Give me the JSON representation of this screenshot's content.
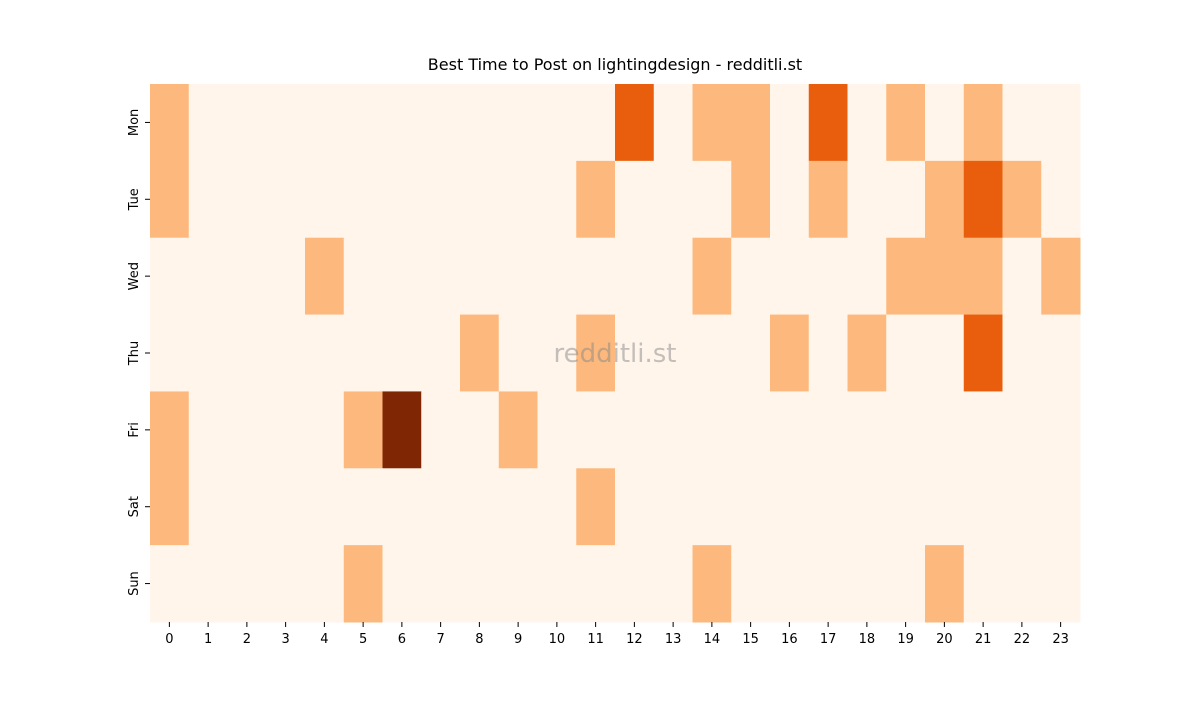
{
  "chart_data": {
    "type": "heatmap",
    "title": "Best Time to Post on lightingdesign - redditli.st",
    "watermark": "redditli.st",
    "x_categories": [
      "0",
      "1",
      "2",
      "3",
      "4",
      "5",
      "6",
      "7",
      "8",
      "9",
      "10",
      "11",
      "12",
      "13",
      "14",
      "15",
      "16",
      "17",
      "18",
      "19",
      "20",
      "21",
      "22",
      "23"
    ],
    "y_categories": [
      "Mon",
      "Tue",
      "Wed",
      "Thu",
      "Fri",
      "Sat",
      "Sun"
    ],
    "values": [
      [
        1,
        0,
        0,
        0,
        0,
        0,
        0,
        0,
        0,
        0,
        0,
        0,
        2,
        0,
        1,
        1,
        0,
        2,
        0,
        1,
        0,
        1,
        0,
        0
      ],
      [
        1,
        0,
        0,
        0,
        0,
        0,
        0,
        0,
        0,
        0,
        0,
        1,
        0,
        0,
        0,
        1,
        0,
        1,
        0,
        0,
        1,
        2,
        1,
        0
      ],
      [
        0,
        0,
        0,
        0,
        1,
        0,
        0,
        0,
        0,
        0,
        0,
        0,
        0,
        0,
        1,
        0,
        0,
        0,
        0,
        1,
        1,
        1,
        0,
        1
      ],
      [
        0,
        0,
        0,
        0,
        0,
        0,
        0,
        0,
        1,
        0,
        0,
        1,
        0,
        0,
        0,
        0,
        1,
        0,
        1,
        0,
        0,
        2,
        0,
        0
      ],
      [
        1,
        0,
        0,
        0,
        0,
        1,
        3,
        0,
        0,
        1,
        0,
        0,
        0,
        0,
        0,
        0,
        0,
        0,
        0,
        0,
        0,
        0,
        0,
        0
      ],
      [
        1,
        0,
        0,
        0,
        0,
        0,
        0,
        0,
        0,
        0,
        0,
        1,
        0,
        0,
        0,
        0,
        0,
        0,
        0,
        0,
        0,
        0,
        0,
        0
      ],
      [
        0,
        0,
        0,
        0,
        0,
        1,
        0,
        0,
        0,
        0,
        0,
        0,
        0,
        0,
        1,
        0,
        0,
        0,
        0,
        0,
        1,
        0,
        0,
        0
      ]
    ],
    "colors": [
      "#fff5eb",
      "#fdb97d",
      "#e95e0d",
      "#7f2704"
    ]
  }
}
